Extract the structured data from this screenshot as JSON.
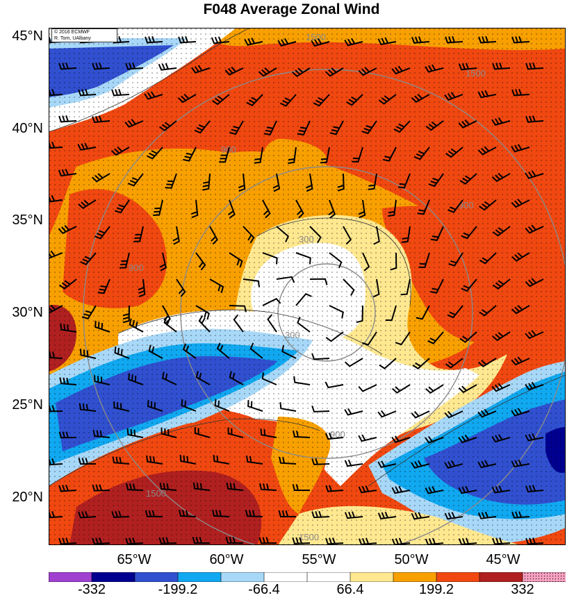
{
  "title": "F048 Average Zonal Wind",
  "credit": {
    "line1": "© 2016 ECMWF",
    "line2": "R. Torn, UAlbany"
  },
  "latitude_labels": [
    "45°N",
    "40°N",
    "35°N",
    "30°N",
    "25°N",
    "20°N"
  ],
  "longitude_labels": [
    "65°W",
    "60°W",
    "55°W",
    "50°W",
    "45°W"
  ],
  "colorbar": {
    "labels": [
      "-332",
      "-199.2",
      "-66.4",
      "66.4",
      "199.2",
      "332"
    ],
    "colors": [
      "#a040d0",
      "#000090",
      "#3050d0",
      "#10a8f0",
      "#a8d8f8",
      "#ffffff",
      "#ffffff",
      "#ffe890",
      "#f8a000",
      "#f04810",
      "#b02020",
      "#f8a0c0"
    ]
  },
  "contour_labels": [
    "300",
    "300",
    "900",
    "900",
    "900",
    "900",
    "1500",
    "1500",
    "1500",
    "1500"
  ],
  "colors": {
    "red": "#f04810",
    "orange": "#f8a000",
    "yellow": "#ffe890",
    "white": "#ffffff",
    "lightblue": "#a8d8f8",
    "cyan": "#10a8f0",
    "blue": "#3050d0",
    "navy": "#000090",
    "darkred": "#b02020"
  }
}
